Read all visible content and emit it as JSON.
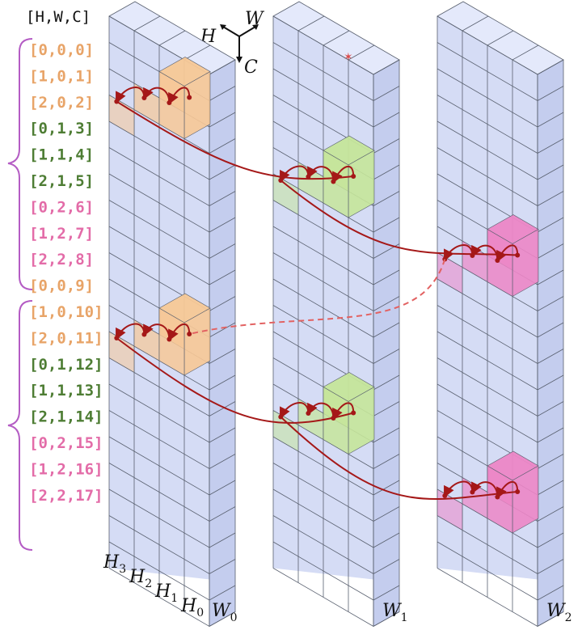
{
  "header_label": "[H,W,C]",
  "axes": {
    "h": "H",
    "w": "W",
    "c": "C"
  },
  "rows": [
    {
      "text": "[0,0,0]",
      "group": "h0"
    },
    {
      "text": "[1,0,1]",
      "group": "h0"
    },
    {
      "text": "[2,0,2]",
      "group": "h0"
    },
    {
      "text": "[0,1,3]",
      "group": "h1"
    },
    {
      "text": "[1,1,4]",
      "group": "h1"
    },
    {
      "text": "[2,1,5]",
      "group": "h1"
    },
    {
      "text": "[0,2,6]",
      "group": "h2"
    },
    {
      "text": "[1,2,7]",
      "group": "h2"
    },
    {
      "text": "[2,2,8]",
      "group": "h2"
    },
    {
      "text": "[0,0,9]",
      "group": "h0"
    },
    {
      "text": "[1,0,10]",
      "group": "h0"
    },
    {
      "text": "[2,0,11]",
      "group": "h0"
    },
    {
      "text": "[0,1,12]",
      "group": "h1"
    },
    {
      "text": "[1,1,13]",
      "group": "h1"
    },
    {
      "text": "[2,1,14]",
      "group": "h1"
    },
    {
      "text": "[0,2,15]",
      "group": "h2"
    },
    {
      "text": "[1,2,16]",
      "group": "h2"
    },
    {
      "text": "[2,2,17]",
      "group": "h2"
    }
  ],
  "colors": {
    "h0": "#e8a468",
    "h1": "#4e7d34",
    "h2": "#e36ca8",
    "brace": "#b45cc4",
    "arrow": "#a51818",
    "cube_face": "#d5dcf5",
    "cube_side": "#c4cdee",
    "cube_top": "#e4e9fb",
    "grid": "#59606f",
    "hl_orange": "#f7c896",
    "hl_green": "#c5e59a",
    "hl_pink": "#ec86c6"
  },
  "h_labels": [
    {
      "main": "H",
      "sub": "3"
    },
    {
      "main": "H",
      "sub": "2"
    },
    {
      "main": "H",
      "sub": "1"
    },
    {
      "main": "H",
      "sub": "0"
    }
  ],
  "w_labels": [
    {
      "main": "W",
      "sub": "0"
    },
    {
      "main": "W",
      "sub": "1"
    },
    {
      "main": "W",
      "sub": "2"
    }
  ]
}
